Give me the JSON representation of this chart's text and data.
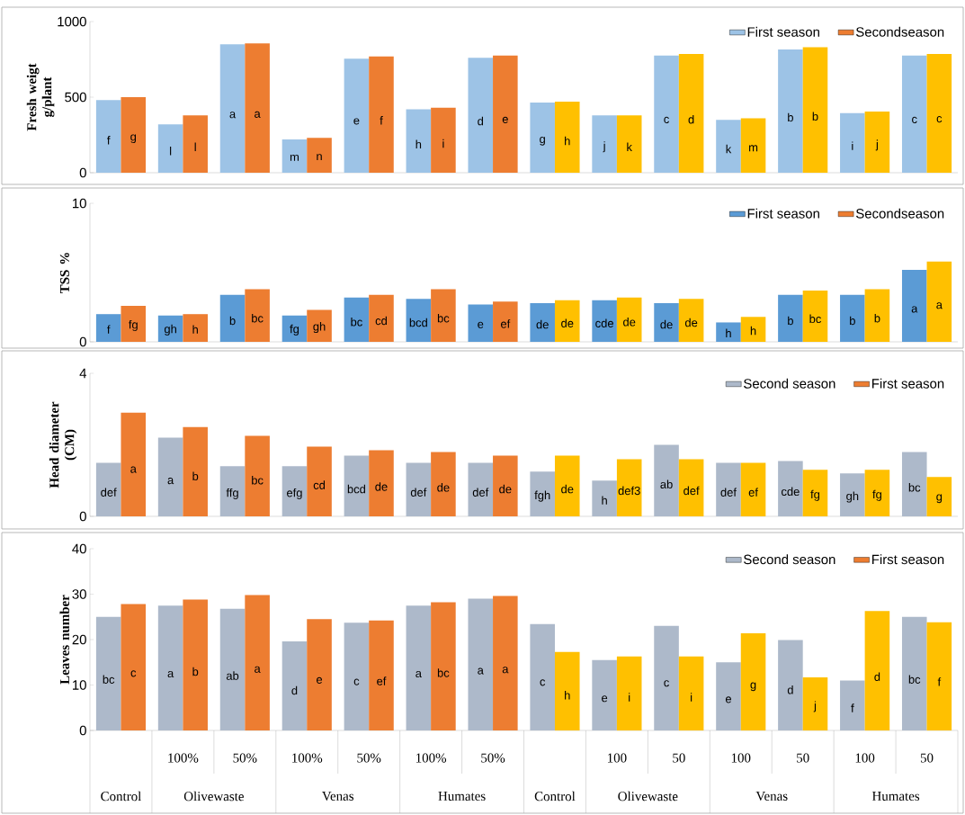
{
  "chart_data": [
    {
      "type": "bar",
      "ylabel": "Fresh weigt g/plant",
      "categories": [
        null,
        null,
        null,
        null,
        null,
        null,
        null,
        null,
        null,
        null,
        null,
        null,
        null,
        null
      ],
      "tick_labels": "y",
      "ylim": [
        0,
        1000
      ],
      "yticks": [
        0,
        500,
        1000
      ],
      "legend": "top right",
      "series": [
        {
          "name": "First season",
          "color": "#9dc3e6",
          "values": [
            480,
            320,
            850,
            220,
            755,
            420,
            760,
            465,
            380,
            775,
            350,
            815,
            395,
            775
          ],
          "value_labels": [
            "f",
            "l",
            "a",
            "m",
            "e",
            "h",
            "d",
            "g",
            "j",
            "c",
            "k",
            "b",
            "i",
            "c"
          ]
        },
        {
          "name": "Secondseason",
          "color": "#ed7d31",
          "colors": [
            "#ed7d31",
            "#ed7d31",
            "#ed7d31",
            "#ed7d31",
            "#ed7d31",
            "#ed7d31",
            "#ed7d31",
            "#ffc000",
            "#ffc000",
            "#ffc000",
            "#ffc000",
            "#ffc000",
            "#ffc000",
            "#ffc000"
          ],
          "values": [
            500,
            380,
            855,
            230,
            770,
            430,
            775,
            470,
            380,
            785,
            360,
            830,
            405,
            785
          ],
          "value_labels": [
            "g",
            "l",
            "a",
            "n",
            "f",
            "i",
            "e",
            "h",
            "k",
            "d",
            "m",
            "b",
            "j",
            "c"
          ]
        }
      ]
    },
    {
      "type": "bar",
      "ylabel": "TSS %",
      "categories": [
        null,
        null,
        null,
        null,
        null,
        null,
        null,
        null,
        null,
        null,
        null,
        null,
        null,
        null
      ],
      "tick_labels": "y",
      "ylim": [
        0,
        10
      ],
      "yticks": [
        0,
        10
      ],
      "legend": "top right",
      "series": [
        {
          "name": "First season",
          "color": "#5b9bd5",
          "values": [
            2.0,
            1.9,
            3.4,
            1.9,
            3.2,
            3.1,
            2.7,
            2.8,
            3.0,
            2.8,
            1.4,
            3.4,
            3.4,
            5.2
          ],
          "value_labels": [
            "f",
            "gh",
            "b",
            "fg",
            "bc",
            "bcd",
            "e",
            "de",
            "cde",
            "de",
            "h",
            "b",
            "b",
            "a"
          ]
        },
        {
          "name": "Secondseason",
          "color": "#ed7d31",
          "colors": [
            "#ed7d31",
            "#ed7d31",
            "#ed7d31",
            "#ed7d31",
            "#ed7d31",
            "#ed7d31",
            "#ed7d31",
            "#ffc000",
            "#ffc000",
            "#ffc000",
            "#ffc000",
            "#ffc000",
            "#ffc000",
            "#ffc000"
          ],
          "values": [
            2.6,
            2.0,
            3.8,
            2.3,
            3.4,
            3.8,
            2.9,
            3.0,
            3.2,
            3.1,
            1.8,
            3.7,
            3.8,
            5.8
          ],
          "value_labels": [
            "fg",
            "h",
            "bc",
            "gh",
            "cd",
            "bc",
            "ef",
            "de",
            "de",
            "de",
            "h",
            "bc",
            "b",
            "a"
          ]
        }
      ]
    },
    {
      "type": "bar",
      "ylabel": "Head diameter (CM)",
      "categories": [
        null,
        null,
        null,
        null,
        null,
        null,
        null,
        null,
        null,
        null,
        null,
        null,
        null,
        null
      ],
      "tick_labels": "y",
      "ylim": [
        0,
        4
      ],
      "yticks": [
        0,
        4
      ],
      "legend": "top right",
      "series": [
        {
          "name": "Second season",
          "color": "#adb9ca",
          "values": [
            1.5,
            2.2,
            1.4,
            1.4,
            1.7,
            1.5,
            1.5,
            1.25,
            1.0,
            2.0,
            1.5,
            1.55,
            1.2,
            1.8
          ],
          "value_labels": [
            "def",
            "a",
            "ffg",
            "efg",
            "bcd",
            "def",
            "def",
            "fgh",
            "h",
            "ab",
            "def",
            "cde",
            "gh",
            "bc"
          ]
        },
        {
          "name": "First season",
          "color": "#ed7d31",
          "colors": [
            "#ed7d31",
            "#ed7d31",
            "#ed7d31",
            "#ed7d31",
            "#ed7d31",
            "#ed7d31",
            "#ed7d31",
            "#ffc000",
            "#ffc000",
            "#ffc000",
            "#ffc000",
            "#ffc000",
            "#ffc000",
            "#ffc000"
          ],
          "values": [
            2.9,
            2.5,
            2.25,
            1.95,
            1.85,
            1.8,
            1.7,
            1.7,
            1.6,
            1.6,
            1.5,
            1.3,
            1.3,
            1.1
          ],
          "value_labels": [
            "a",
            "b",
            "bc",
            "cd",
            "de",
            "de",
            "de",
            "de",
            "def3",
            "def",
            "ef",
            "fg",
            "fg",
            "g"
          ]
        }
      ]
    },
    {
      "type": "bar",
      "ylabel": "Leaves number",
      "categories": [
        null,
        "100%",
        "50%",
        "100%",
        "50%",
        "100%",
        "50%",
        null,
        "100",
        "50",
        "100",
        "50",
        "100",
        "50"
      ],
      "ylim": [
        0,
        40
      ],
      "yticks": [
        0,
        10,
        20,
        30,
        40
      ],
      "legend": "top right",
      "annotations": [
        "Control",
        "Olivewaste",
        "Venas",
        "Humates",
        "Control",
        "Olivewaste",
        "Venas",
        "Humates"
      ],
      "series": [
        {
          "name": "Second season",
          "color": "#adb9ca",
          "values": [
            25,
            27.5,
            26.8,
            19.6,
            23.7,
            27.5,
            29,
            23.4,
            15.5,
            23,
            15,
            19.9,
            11,
            25
          ],
          "value_labels": [
            "bc",
            "a",
            "ab",
            "d",
            "c",
            "a",
            "a",
            "c",
            "e",
            "c",
            "e",
            "d",
            "f",
            "bc"
          ]
        },
        {
          "name": "First season",
          "color": "#ed7d31",
          "colors": [
            "#ed7d31",
            "#ed7d31",
            "#ed7d31",
            "#ed7d31",
            "#ed7d31",
            "#ed7d31",
            "#ed7d31",
            "#ffc000",
            "#ffc000",
            "#ffc000",
            "#ffc000",
            "#ffc000",
            "#ffc000",
            "#ffc000"
          ],
          "values": [
            27.8,
            28.8,
            29.8,
            24.5,
            24.2,
            28.2,
            29.6,
            17.3,
            16.3,
            16.3,
            21.4,
            11.7,
            26.3,
            23.8
          ],
          "value_labels": [
            "c",
            "b",
            "a",
            "e",
            "ef",
            "bc",
            "a",
            "h",
            "i",
            "i",
            "g",
            "j",
            "d",
            "f"
          ]
        }
      ]
    }
  ]
}
